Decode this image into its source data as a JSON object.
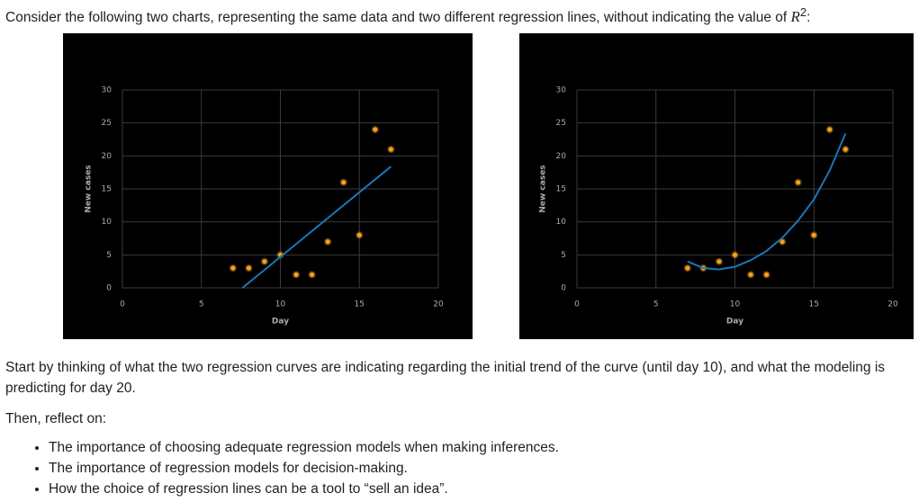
{
  "intro": {
    "text": "Consider the following two charts, representing the same data and two different regression lines, without indicating the value of ",
    "math": "R",
    "sup": "2",
    "end": ":"
  },
  "chart_data": [
    {
      "type": "scatter",
      "xlabel": "Day",
      "ylabel": "New cases",
      "xlim": [
        0,
        20
      ],
      "ylim": [
        0,
        30
      ],
      "xticks": [
        0,
        5,
        10,
        15,
        20
      ],
      "yticks": [
        0,
        5,
        10,
        15,
        20,
        25,
        30
      ],
      "grid": true,
      "series": [
        {
          "color": "#f7a21b",
          "x": [
            7,
            8,
            9,
            10,
            11,
            12,
            13,
            14,
            15,
            16,
            17
          ],
          "values": [
            3,
            3,
            4,
            5,
            2,
            2,
            7,
            16,
            8,
            24,
            21
          ]
        },
        {
          "type": "line",
          "color": "#1b76b8",
          "x": [
            7.6,
            17
          ],
          "values": [
            0,
            18.4
          ]
        }
      ]
    },
    {
      "type": "scatter",
      "xlabel": "Day",
      "ylabel": "New cases",
      "xlim": [
        0,
        20
      ],
      "ylim": [
        0,
        30
      ],
      "xticks": [
        0,
        5,
        10,
        15,
        20
      ],
      "yticks": [
        0,
        5,
        10,
        15,
        20,
        25,
        30
      ],
      "grid": true,
      "series": [
        {
          "color": "#f7a21b",
          "x": [
            7,
            8,
            9,
            10,
            11,
            12,
            13,
            14,
            15,
            16,
            17
          ],
          "values": [
            3,
            3,
            4,
            5,
            2,
            2,
            7,
            16,
            8,
            24,
            21
          ]
        },
        {
          "type": "line",
          "color": "#1b76b8",
          "x": [
            7,
            8,
            9,
            10,
            11,
            12,
            13,
            14,
            15,
            16,
            17
          ],
          "values": [
            4,
            3,
            2.8,
            3.2,
            4.2,
            5.6,
            7.6,
            10.2,
            13.4,
            17.8,
            23.4
          ]
        }
      ]
    }
  ],
  "paragraphs": [
    "Start by thinking of what the two regression curves are indicating regarding the initial trend of the curve (until day 10), and what the modeling is predicting for day 20.",
    "Then, reflect on:"
  ],
  "bullets": [
    "The importance of choosing adequate regression models when making inferences.",
    "The importance of regression models for decision-making.",
    "How the choice of regression lines can be a tool to “sell an idea”."
  ]
}
